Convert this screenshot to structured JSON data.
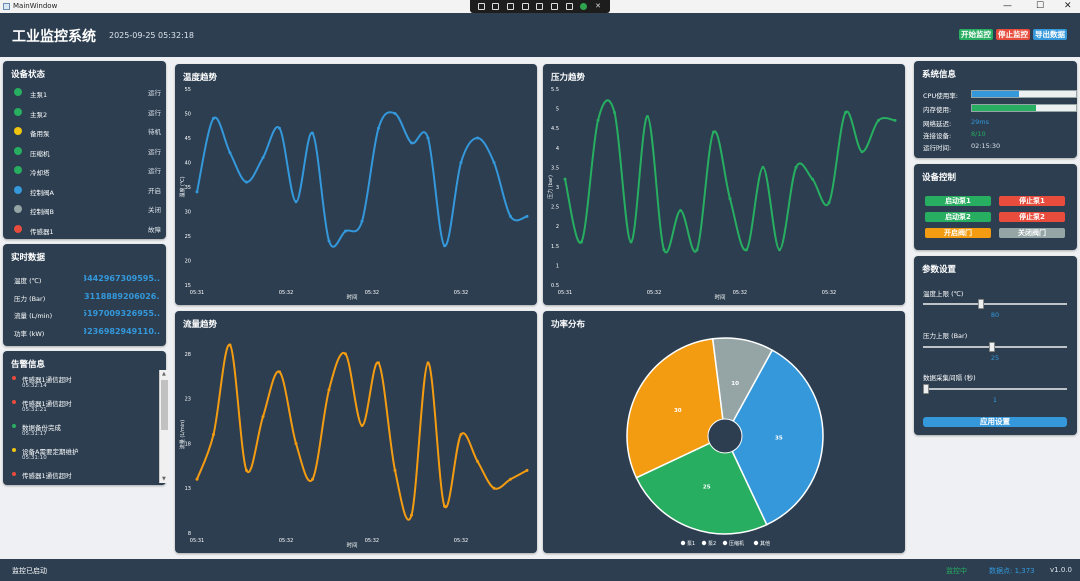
{
  "window": {
    "title": "MainWindow",
    "controls": [
      "—",
      "☐",
      "✕"
    ]
  },
  "header": {
    "app_name": "工业监控系统",
    "datetime": "2025-09-25 05:32:18",
    "buttons": {
      "start": "开始监控",
      "stop": "停止监控",
      "export": "导出数据"
    }
  },
  "device_status": {
    "title": "设备状态",
    "items": [
      {
        "name": "主泵1",
        "state": "运行",
        "color": "#27ae60"
      },
      {
        "name": "主泵2",
        "state": "运行",
        "color": "#27ae60"
      },
      {
        "name": "备用泵",
        "state": "待机",
        "color": "#f1c40f"
      },
      {
        "name": "压缩机",
        "state": "运行",
        "color": "#27ae60"
      },
      {
        "name": "冷却塔",
        "state": "运行",
        "color": "#27ae60"
      },
      {
        "name": "控制阀A",
        "state": "开启",
        "color": "#3498db"
      },
      {
        "name": "控制阀B",
        "state": "关闭",
        "color": "#95a5a6"
      },
      {
        "name": "传感器1",
        "state": "故障",
        "color": "#e74c3c"
      }
    ]
  },
  "realtime": {
    "title": "实时数据",
    "items": [
      {
        "label": "温度 (℃)",
        "value": "..3442967309595"
      },
      {
        "label": "压力 (Bar)",
        "value": ".3118889206026"
      },
      {
        "label": "流量 (L/min)",
        "value": "..5197009326955"
      },
      {
        "label": "功率 (kW)",
        "value": "..3236982949110"
      }
    ]
  },
  "alerts": {
    "title": "告警信息",
    "items": [
      {
        "message": "传感器1通信超时",
        "time": "05:32:14",
        "color": "#e74c3c"
      },
      {
        "message": "传感器1通信超时",
        "time": "05:31:21",
        "color": "#e74c3c"
      },
      {
        "message": "数据备份完成",
        "time": "05:31:17",
        "color": "#27ae60"
      },
      {
        "message": "设备A需要定期维护",
        "time": "05:31:10",
        "color": "#f1c40f"
      },
      {
        "message": "传感器1通信超时",
        "time": "",
        "color": "#e74c3c"
      }
    ]
  },
  "system_info": {
    "title": "系统信息",
    "cpu_label": "CPU使用率:",
    "cpu_usage": 0.45,
    "cpu_color": "#3498db",
    "mem_label": "内存使用:",
    "mem_usage": 0.62,
    "mem_color": "#27ae60",
    "latency_label": "网络延迟:",
    "latency": "29ms",
    "devices_label": "连接设备:",
    "devices": "8/10",
    "uptime_label": "运行时间:",
    "uptime": "02:15:30"
  },
  "device_control": {
    "title": "设备控制",
    "buttons": [
      {
        "label": "启动泵1",
        "color": "#27ae60"
      },
      {
        "label": "停止泵1",
        "color": "#e74c3c"
      },
      {
        "label": "启动泵2",
        "color": "#27ae60"
      },
      {
        "label": "停止泵2",
        "color": "#e74c3c"
      },
      {
        "label": "开启阀门",
        "color": "#f39c12"
      },
      {
        "label": "关闭阀门",
        "color": "#95a5a6"
      }
    ]
  },
  "params": {
    "title": "参数设置",
    "temp_label": "温度上限 (℃)",
    "temp_value": "80",
    "temp_pos": 0.4,
    "pres_label": "压力上限 (Bar)",
    "pres_value": "25",
    "pres_pos": 0.48,
    "interval_label": "数据采集间隔 (秒)",
    "interval_value": "1",
    "interval_pos": 0.0,
    "apply": "应用设置"
  },
  "footer": {
    "status": "监控已启动",
    "monitor": "监控中",
    "points": "数据点: 1,373",
    "version": "v1.0.0"
  },
  "chart_data": [
    {
      "type": "line",
      "title": "温度趋势",
      "xlabel": "时间",
      "ylabel": "温度 (℃)",
      "color": "#3498db",
      "ylim": [
        15,
        55
      ],
      "yticks": [
        15,
        20,
        25,
        30,
        35,
        40,
        45,
        50,
        55
      ],
      "xticks": [
        "05:31",
        "05:32",
        "05:32",
        "05:32"
      ],
      "x": [
        0,
        1,
        2,
        3,
        4,
        5,
        6,
        7,
        8,
        9,
        10,
        11,
        12,
        13,
        14,
        15,
        16,
        17,
        18,
        19,
        20
      ],
      "values": [
        34,
        49,
        42,
        36,
        41,
        47,
        32,
        46,
        24,
        26,
        28,
        47,
        50,
        44,
        45,
        23,
        40,
        45,
        40,
        29,
        29
      ]
    },
    {
      "type": "line",
      "title": "压力趋势",
      "xlabel": "时间",
      "ylabel": "压力 (bar)",
      "color": "#27ae60",
      "ylim": [
        0.5,
        5.5
      ],
      "yticks": [
        0.5,
        1,
        1.5,
        2,
        2.5,
        3,
        3.5,
        4,
        4.5,
        5,
        5.5
      ],
      "xticks": [
        "05:31",
        "05:32",
        "05:32",
        "05:32"
      ],
      "x": [
        0,
        1,
        2,
        3,
        4,
        5,
        6,
        7,
        8,
        9,
        10,
        11,
        12,
        13,
        14,
        15,
        16,
        17,
        18,
        19,
        20
      ],
      "values": [
        3.2,
        1.6,
        4.7,
        4.9,
        1.6,
        4.8,
        1.4,
        2.4,
        1.4,
        4.4,
        2.7,
        1.4,
        3.5,
        1.4,
        3.5,
        3.2,
        2.6,
        4.9,
        3.9,
        4.7,
        4.7
      ]
    },
    {
      "type": "line",
      "title": "流量趋势",
      "xlabel": "时间",
      "ylabel": "流量 (L/min)",
      "color": "#f39c12",
      "ylim": [
        8,
        30
      ],
      "yticks": [
        8,
        13,
        18,
        23,
        28
      ],
      "xticks": [
        "05:31",
        "05:32",
        "05:32",
        "05:32"
      ],
      "x": [
        0,
        1,
        2,
        3,
        4,
        5,
        6,
        7,
        8,
        9,
        10,
        11,
        12,
        13,
        14,
        15,
        16,
        17,
        18,
        19,
        20
      ],
      "values": [
        14,
        19,
        29,
        15,
        21,
        26,
        18,
        14,
        24,
        28,
        20,
        27,
        15,
        10,
        27,
        11,
        19,
        16,
        13,
        14,
        15
      ]
    },
    {
      "type": "pie",
      "title": "功率分布",
      "categories": [
        "泵1",
        "泵2",
        "压缩机",
        "其他"
      ],
      "values": [
        35,
        25,
        30,
        10
      ],
      "colors": [
        "#3498db",
        "#27ae60",
        "#f39c12",
        "#95a5a6"
      ]
    }
  ]
}
